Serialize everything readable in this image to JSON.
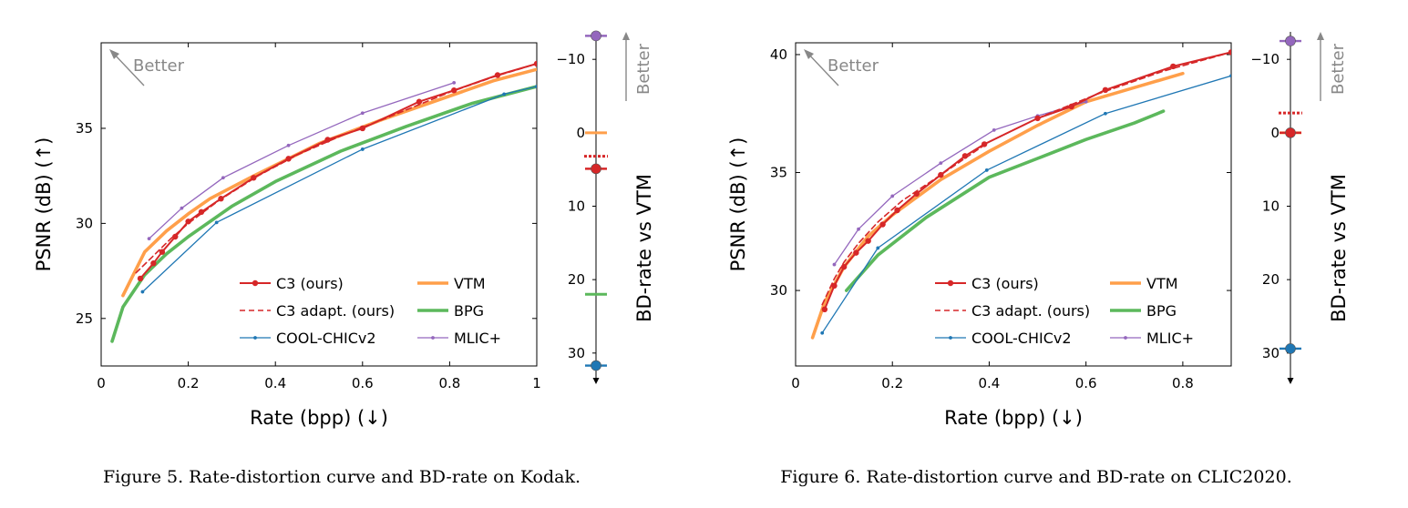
{
  "colors": {
    "C3": "#d62728",
    "VTM": "#ff9f4a",
    "BPG": "#5cb85c",
    "COOL": "#1f77b4",
    "MLIC": "#9467bd",
    "better": "#888888"
  },
  "better_label": "Better",
  "chart_data": [
    {
      "type": "line",
      "xlabel": "Rate (bpp) (↓)",
      "ylabel": "PSNR (dB) (↑)",
      "xlim": [
        0,
        1
      ],
      "ylim": [
        22.5,
        39.5
      ],
      "xticks": [
        0,
        0.2,
        0.4,
        0.6,
        0.8,
        1
      ],
      "xtick_labels": [
        "0",
        "0.2",
        "0.4",
        "0.6",
        "0.8",
        "1"
      ],
      "yticks": [
        25,
        30,
        35
      ],
      "ytick_labels": [
        "25",
        "30",
        "35"
      ],
      "legend": "bottom-right",
      "series": [
        {
          "key": "C3",
          "name": "C3 (ours)",
          "style": "marker",
          "x": [
            0.09,
            0.12,
            0.14,
            0.17,
            0.2,
            0.23,
            0.275,
            0.35,
            0.43,
            0.52,
            0.6,
            0.73,
            0.81,
            0.91,
            1.0
          ],
          "y": [
            27.1,
            27.9,
            28.5,
            29.3,
            30.1,
            30.6,
            31.3,
            32.4,
            33.4,
            34.4,
            35.0,
            36.4,
            37.0,
            37.8,
            38.4
          ]
        },
        {
          "key": "C3",
          "name": "C3 adapt. (ours)",
          "style": "dashed",
          "x": [
            0.08,
            0.12,
            0.16,
            0.2,
            0.27,
            0.36,
            0.45,
            0.55,
            0.65,
            0.8,
            0.9,
            1.0
          ],
          "y": [
            27.4,
            28.3,
            29.2,
            30.0,
            31.2,
            32.5,
            33.6,
            34.6,
            35.5,
            36.9,
            37.7,
            38.4
          ]
        },
        {
          "key": "COOL",
          "name": "COOL-CHICv2",
          "style": "marker-small",
          "x": [
            0.095,
            0.265,
            0.6,
            0.925,
            1.0
          ],
          "y": [
            26.4,
            30.05,
            33.9,
            36.8,
            37.2
          ]
        },
        {
          "key": "VTM",
          "name": "VTM",
          "style": "thick",
          "x": [
            0.05,
            0.1,
            0.15,
            0.2,
            0.25,
            0.35,
            0.5,
            0.65,
            0.8,
            0.9,
            1.0
          ],
          "y": [
            26.2,
            28.5,
            29.6,
            30.5,
            31.3,
            32.5,
            34.2,
            35.5,
            36.7,
            37.5,
            38.1
          ]
        },
        {
          "key": "BPG",
          "name": "BPG",
          "style": "thick",
          "x": [
            0.025,
            0.05,
            0.1,
            0.15,
            0.2,
            0.3,
            0.4,
            0.55,
            0.7,
            0.85,
            1.0
          ],
          "y": [
            23.8,
            25.6,
            27.3,
            28.4,
            29.3,
            30.9,
            32.2,
            33.8,
            35.1,
            36.3,
            37.2
          ]
        },
        {
          "key": "MLIC",
          "name": "MLIC+",
          "style": "marker-small",
          "x": [
            0.11,
            0.185,
            0.28,
            0.43,
            0.6,
            0.81
          ],
          "y": [
            29.2,
            30.8,
            32.4,
            34.1,
            35.8,
            37.4
          ]
        }
      ],
      "bd_rate": {
        "ylabel": "BD-rate vs VTM",
        "ylim": [
          -13,
          33
        ],
        "ticks": [
          -10,
          0,
          10,
          20,
          30
        ],
        "tick_labels": [
          "−10",
          "0",
          "10",
          "20",
          "30"
        ],
        "values": [
          {
            "key": "MLIC",
            "value": -13.2,
            "style": "dot"
          },
          {
            "key": "VTM",
            "value": 0,
            "style": "bar"
          },
          {
            "key": "C3",
            "value": 3.2,
            "style": "dotted-bar"
          },
          {
            "key": "C3",
            "value": 4.9,
            "style": "dot"
          },
          {
            "key": "BPG",
            "value": 22.0,
            "style": "bar"
          },
          {
            "key": "COOL",
            "value": 31.7,
            "style": "dot"
          }
        ]
      },
      "caption": "Figure 5. Rate-distortion curve and BD-rate on Kodak."
    },
    {
      "type": "line",
      "xlabel": "Rate (bpp) (↓)",
      "ylabel": "PSNR (dB) (↑)",
      "xlim": [
        0,
        0.9
      ],
      "ylim": [
        26.8,
        40.5
      ],
      "xticks": [
        0,
        0.2,
        0.4,
        0.6,
        0.8
      ],
      "xtick_labels": [
        "0",
        "0.2",
        "0.4",
        "0.6",
        "0.8"
      ],
      "yticks": [
        30,
        35,
        40
      ],
      "ytick_labels": [
        "30",
        "35",
        "40"
      ],
      "legend": "bottom-right",
      "series": [
        {
          "key": "C3",
          "name": "C3 (ours)",
          "style": "marker",
          "x": [
            0.06,
            0.08,
            0.1,
            0.125,
            0.15,
            0.18,
            0.21,
            0.25,
            0.3,
            0.35,
            0.39,
            0.5,
            0.57,
            0.64,
            0.78,
            0.9
          ],
          "y": [
            29.2,
            30.2,
            31.0,
            31.6,
            32.1,
            32.8,
            33.4,
            34.1,
            34.9,
            35.7,
            36.2,
            37.3,
            37.8,
            38.5,
            39.5,
            40.1
          ]
        },
        {
          "key": "C3",
          "name": "C3 adapt. (ours)",
          "style": "dashed",
          "x": [
            0.055,
            0.08,
            0.1,
            0.13,
            0.17,
            0.22,
            0.3,
            0.4,
            0.5,
            0.62,
            0.76,
            0.9
          ],
          "y": [
            29.4,
            30.5,
            31.2,
            32.0,
            32.9,
            33.8,
            34.9,
            36.3,
            37.3,
            38.3,
            39.3,
            40.1
          ]
        },
        {
          "key": "COOL",
          "name": "COOL-CHICv2",
          "style": "marker-small",
          "x": [
            0.055,
            0.17,
            0.395,
            0.64,
            0.9
          ],
          "y": [
            28.2,
            31.8,
            35.1,
            37.5,
            39.1
          ]
        },
        {
          "key": "VTM",
          "name": "VTM",
          "style": "thick",
          "x": [
            0.035,
            0.06,
            0.1,
            0.15,
            0.2,
            0.3,
            0.4,
            0.5,
            0.6,
            0.7,
            0.8
          ],
          "y": [
            28.0,
            29.5,
            31.0,
            32.3,
            33.2,
            34.7,
            35.9,
            37.0,
            38.0,
            38.6,
            39.2
          ]
        },
        {
          "key": "BPG",
          "name": "BPG",
          "style": "thick",
          "x": [
            0.105,
            0.17,
            0.27,
            0.4,
            0.5,
            0.6,
            0.7,
            0.76
          ],
          "y": [
            30.0,
            31.5,
            33.1,
            34.8,
            35.6,
            36.4,
            37.1,
            37.6
          ]
        },
        {
          "key": "MLIC",
          "name": "MLIC+",
          "style": "marker-small",
          "x": [
            0.08,
            0.13,
            0.2,
            0.3,
            0.41,
            0.5,
            0.6
          ],
          "y": [
            31.1,
            32.6,
            34.0,
            35.4,
            36.8,
            37.4,
            38.0
          ]
        }
      ],
      "bd_rate": {
        "ylabel": "BD-rate vs VTM",
        "ylim": [
          -13,
          33
        ],
        "ticks": [
          -10,
          0,
          10,
          20,
          30
        ],
        "tick_labels": [
          "−10",
          "0",
          "10",
          "20",
          "30"
        ],
        "values": [
          {
            "key": "MLIC",
            "value": -12.5,
            "style": "dot"
          },
          {
            "key": "C3",
            "value": -2.7,
            "style": "dotted-bar"
          },
          {
            "key": "VTM",
            "value": 0,
            "style": "bar"
          },
          {
            "key": "C3",
            "value": 0,
            "style": "dot"
          },
          {
            "key": "COOL",
            "value": 29.4,
            "style": "dot"
          }
        ]
      },
      "caption": "Figure 6. Rate-distortion curve and BD-rate on CLIC2020."
    }
  ]
}
